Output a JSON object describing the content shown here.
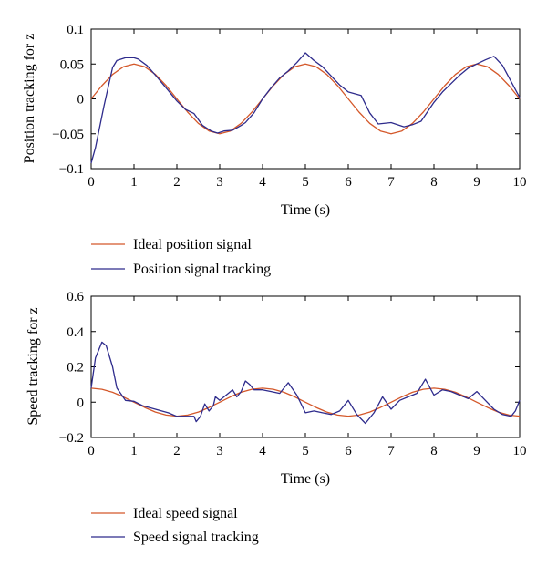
{
  "chart_data": [
    {
      "type": "line",
      "xlabel": "Time (s)",
      "ylabel": "Position tracking for z",
      "xlim": [
        0,
        10
      ],
      "ylim": [
        -0.1,
        0.1
      ],
      "xticks": [
        0,
        1,
        2,
        3,
        4,
        5,
        6,
        7,
        8,
        9,
        10
      ],
      "yticks": [
        -0.1,
        -0.05,
        0,
        0.05,
        0.1
      ],
      "ytick_labels": [
        "−0.1",
        "−0.05",
        "0",
        "0.05",
        "0.1"
      ],
      "grid": false,
      "legend_position": "below",
      "series": [
        {
          "name": "Ideal position signal",
          "color": "#d4582a",
          "x": [
            0,
            0.25,
            0.5,
            0.75,
            1,
            1.25,
            1.5,
            1.75,
            2,
            2.25,
            2.5,
            2.75,
            3,
            3.25,
            3.5,
            3.75,
            4,
            4.25,
            4.5,
            4.75,
            5,
            5.25,
            5.5,
            5.75,
            6,
            6.25,
            6.5,
            6.75,
            7,
            7.25,
            7.5,
            7.75,
            8,
            8.25,
            8.5,
            8.75,
            9,
            9.25,
            9.5,
            9.75,
            10
          ],
          "y": [
            0,
            0.019,
            0.035,
            0.046,
            0.05,
            0.046,
            0.035,
            0.019,
            0,
            -0.019,
            -0.035,
            -0.046,
            -0.05,
            -0.046,
            -0.035,
            -0.019,
            0,
            0.019,
            0.035,
            0.046,
            0.05,
            0.046,
            0.035,
            0.019,
            0,
            -0.019,
            -0.035,
            -0.046,
            -0.05,
            -0.046,
            -0.035,
            -0.019,
            0,
            0.019,
            0.035,
            0.046,
            0.05,
            0.046,
            0.035,
            0.019,
            0
          ]
        },
        {
          "name": "Position signal tracking",
          "color": "#2e2b8c",
          "x": [
            0,
            0.1,
            0.3,
            0.5,
            0.6,
            0.8,
            1.0,
            1.1,
            1.3,
            1.5,
            1.8,
            2.0,
            2.2,
            2.4,
            2.6,
            2.8,
            2.95,
            3.1,
            3.3,
            3.5,
            3.6,
            3.8,
            4.0,
            4.2,
            4.4,
            4.6,
            4.8,
            5.0,
            5.2,
            5.4,
            5.6,
            5.8,
            6.0,
            6.3,
            6.5,
            6.7,
            7.0,
            7.3,
            7.5,
            7.7,
            8.0,
            8.2,
            8.4,
            8.6,
            8.8,
            9.0,
            9.2,
            9.4,
            9.6,
            9.8,
            10.0
          ],
          "y": [
            -0.092,
            -0.07,
            -0.01,
            0.045,
            0.055,
            0.059,
            0.059,
            0.057,
            0.048,
            0.034,
            0.012,
            -0.003,
            -0.015,
            -0.021,
            -0.038,
            -0.046,
            -0.049,
            -0.046,
            -0.045,
            -0.038,
            -0.034,
            -0.02,
            0,
            0.016,
            0.03,
            0.04,
            0.052,
            0.066,
            0.055,
            0.046,
            0.033,
            0.02,
            0.01,
            0.005,
            -0.02,
            -0.036,
            -0.034,
            -0.04,
            -0.037,
            -0.032,
            -0.005,
            0.01,
            0.022,
            0.034,
            0.044,
            0.05,
            0.056,
            0.061,
            0.048,
            0.025,
            0.002
          ]
        }
      ]
    },
    {
      "type": "line",
      "xlabel": "Time (s)",
      "ylabel": "Speed tracking for z",
      "xlim": [
        0,
        10
      ],
      "ylim": [
        -0.2,
        0.6
      ],
      "xticks": [
        0,
        1,
        2,
        3,
        4,
        5,
        6,
        7,
        8,
        9,
        10
      ],
      "yticks": [
        -0.2,
        0,
        0.2,
        0.4,
        0.6
      ],
      "ytick_labels": [
        "−0.2",
        "0",
        "0.2",
        "0.4",
        "0.6"
      ],
      "grid": false,
      "legend_position": "below",
      "series": [
        {
          "name": "Ideal speed signal",
          "color": "#d4582a",
          "x": [
            0,
            0.25,
            0.5,
            0.75,
            1,
            1.25,
            1.5,
            1.75,
            2,
            2.25,
            2.5,
            2.75,
            3,
            3.25,
            3.5,
            3.75,
            4,
            4.25,
            4.5,
            4.75,
            5,
            5.25,
            5.5,
            5.75,
            6,
            6.25,
            6.5,
            6.75,
            7,
            7.25,
            7.5,
            7.75,
            8,
            8.25,
            8.5,
            8.75,
            9,
            9.25,
            9.5,
            9.75,
            10
          ],
          "y": [
            0.079,
            0.073,
            0.056,
            0.03,
            0,
            -0.03,
            -0.056,
            -0.073,
            -0.079,
            -0.073,
            -0.056,
            -0.03,
            0,
            0.03,
            0.056,
            0.073,
            0.079,
            0.073,
            0.056,
            0.03,
            0,
            -0.03,
            -0.056,
            -0.073,
            -0.079,
            -0.073,
            -0.056,
            -0.03,
            0,
            0.03,
            0.056,
            0.073,
            0.079,
            0.073,
            0.056,
            0.03,
            0,
            -0.03,
            -0.056,
            -0.073,
            -0.079
          ]
        },
        {
          "name": "Speed signal tracking",
          "color": "#2e2b8c",
          "x": [
            0,
            0.1,
            0.25,
            0.35,
            0.5,
            0.6,
            0.8,
            1.0,
            1.2,
            1.5,
            1.8,
            2.0,
            2.2,
            2.4,
            2.45,
            2.55,
            2.65,
            2.75,
            2.85,
            2.9,
            3.0,
            3.2,
            3.3,
            3.4,
            3.5,
            3.6,
            3.7,
            3.8,
            4.0,
            4.2,
            4.4,
            4.6,
            4.8,
            5.0,
            5.2,
            5.4,
            5.6,
            5.8,
            6.0,
            6.2,
            6.4,
            6.6,
            6.8,
            7.0,
            7.2,
            7.4,
            7.6,
            7.8,
            8.0,
            8.2,
            8.4,
            8.6,
            8.8,
            9.0,
            9.2,
            9.4,
            9.6,
            9.8,
            9.9,
            10.0
          ],
          "y": [
            0.08,
            0.25,
            0.34,
            0.32,
            0.2,
            0.08,
            0.01,
            0.005,
            -0.02,
            -0.04,
            -0.06,
            -0.08,
            -0.08,
            -0.08,
            -0.11,
            -0.08,
            -0.01,
            -0.05,
            -0.02,
            0.03,
            0.01,
            0.05,
            0.07,
            0.03,
            0.06,
            0.12,
            0.1,
            0.07,
            0.07,
            0.06,
            0.05,
            0.11,
            0.04,
            -0.06,
            -0.05,
            -0.06,
            -0.07,
            -0.05,
            0.01,
            -0.07,
            -0.12,
            -0.06,
            0.03,
            -0.04,
            0.01,
            0.03,
            0.05,
            0.13,
            0.04,
            0.07,
            0.06,
            0.04,
            0.02,
            0.06,
            0.01,
            -0.04,
            -0.07,
            -0.08,
            -0.05,
            0.01
          ]
        }
      ]
    }
  ]
}
